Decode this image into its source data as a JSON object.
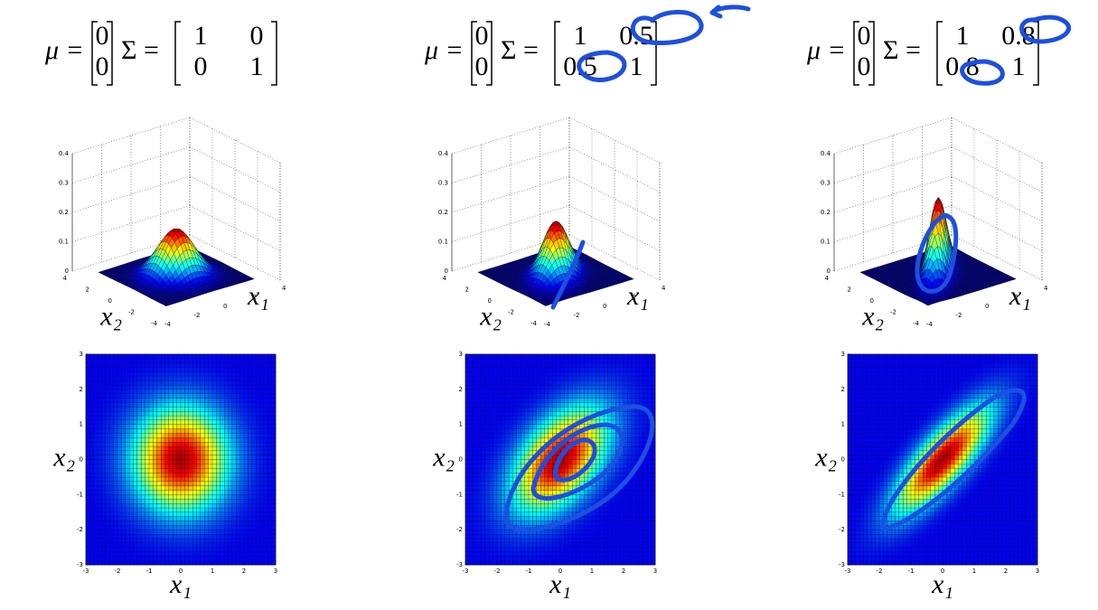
{
  "panels": [
    {
      "mu_label": "μ =",
      "mu": [
        0,
        0
      ],
      "sigma_label": "Σ =",
      "sigma": [
        [
          1,
          0
        ],
        [
          0,
          1
        ]
      ],
      "surface": {
        "zticks": [
          0,
          0.1,
          0.2,
          0.3,
          0.4
        ],
        "x1ticks": [
          -4,
          -2,
          0,
          2,
          4
        ],
        "x2ticks": [
          4,
          2,
          0,
          -2,
          -4
        ],
        "x1_label": "x₁",
        "x2_label": "x₂"
      },
      "heatmap": {
        "x1ticks": [
          -3,
          -2,
          -1,
          0,
          1,
          2,
          3
        ],
        "x2ticks": [
          3,
          2,
          1,
          0,
          -1,
          -2,
          -3
        ],
        "x1_label": "x₁",
        "x2_label": "x₂"
      }
    },
    {
      "mu_label": "μ =",
      "mu": [
        0,
        0
      ],
      "sigma_label": "Σ =",
      "sigma": [
        [
          1,
          0.5
        ],
        [
          0.5,
          1
        ]
      ],
      "surface": {
        "zticks": [
          0,
          0.1,
          0.2,
          0.3,
          0.4
        ],
        "x1ticks": [
          -4,
          -2,
          0,
          2,
          4
        ],
        "x2ticks": [
          4,
          2,
          0,
          -2,
          -4
        ],
        "x1_label": "x₁",
        "x2_label": "x₂"
      },
      "heatmap": {
        "x1ticks": [
          -3,
          -2,
          -1,
          0,
          1,
          2,
          3
        ],
        "x2ticks": [
          3,
          2,
          1,
          0,
          -1,
          -2,
          -3
        ],
        "x1_label": "x₁",
        "x2_label": "x₂"
      }
    },
    {
      "mu_label": "μ =",
      "mu": [
        0,
        0
      ],
      "sigma_label": "Σ =",
      "sigma": [
        [
          1,
          0.8
        ],
        [
          0.8,
          1
        ]
      ],
      "surface": {
        "zticks": [
          0,
          0.1,
          0.2,
          0.3,
          0.4
        ],
        "x1ticks": [
          -4,
          -2,
          0,
          2,
          4
        ],
        "x2ticks": [
          4,
          2,
          0,
          -2,
          -4
        ],
        "x1_label": "x₁",
        "x2_label": "x₂"
      },
      "heatmap": {
        "x1ticks": [
          -3,
          -2,
          -1,
          0,
          1,
          2,
          3
        ],
        "x2ticks": [
          3,
          2,
          1,
          0,
          -1,
          -2,
          -3
        ],
        "x1_label": "x₁",
        "x2_label": "x₂"
      }
    }
  ]
}
